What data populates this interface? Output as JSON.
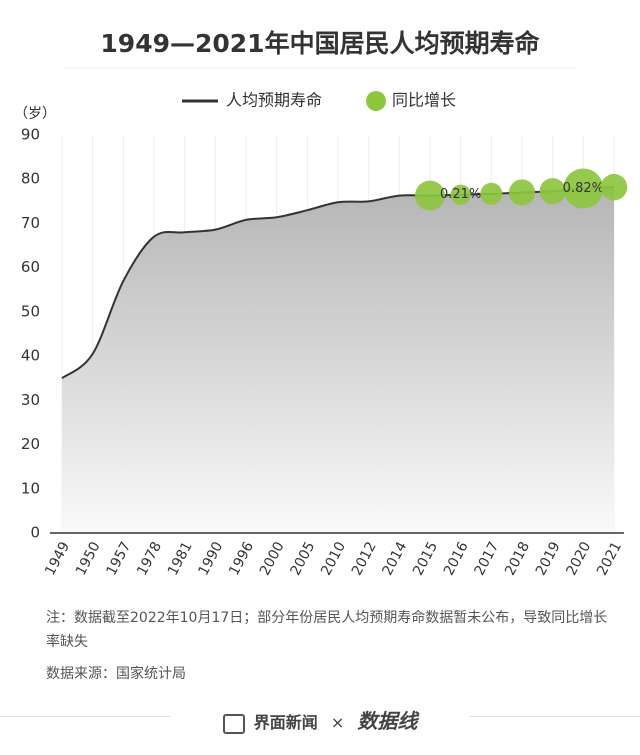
{
  "chart_data": {
    "type": "area-bubble",
    "title": "1949—2021年中国居民人均预期寿命",
    "y_axis_label": "（岁）",
    "categories": [
      "1949",
      "1950",
      "1957",
      "1978",
      "1981",
      "1990",
      "1996",
      "2000",
      "2005",
      "2010",
      "2012",
      "2014",
      "2015",
      "2016",
      "2017",
      "2018",
      "2019",
      "2020",
      "2021"
    ],
    "series": [
      {
        "name": "人均预期寿命",
        "color": "#333333",
        "values": [
          35,
          40.5,
          57,
          67,
          68,
          68.6,
          70.8,
          71.4,
          73,
          74.8,
          75,
          76.3,
          76.3,
          76.5,
          76.7,
          77,
          77.3,
          77.9,
          78.2
        ]
      },
      {
        "name": "同比增长",
        "color": "#8dc63f",
        "values": [
          null,
          null,
          null,
          null,
          null,
          null,
          null,
          null,
          null,
          null,
          null,
          null,
          0.46,
          0.21,
          0.25,
          0.35,
          0.35,
          0.82,
          0.36
        ],
        "value_labels": [
          null,
          null,
          null,
          null,
          null,
          null,
          null,
          null,
          null,
          null,
          null,
          null,
          null,
          "0.21%",
          null,
          null,
          null,
          "0.82%",
          null
        ]
      }
    ],
    "ylim": [
      0,
      90
    ],
    "yticks": [
      0,
      10,
      20,
      30,
      40,
      50,
      60,
      70,
      80,
      90
    ],
    "note": "注：数据截至2022年10月17日；部分年份居民人均预期寿命数据暂未公布，导致同比增长率缺失",
    "source": "数据来源：国家统计局",
    "footer": [
      "界面新闻",
      "×",
      "数据线"
    ]
  }
}
